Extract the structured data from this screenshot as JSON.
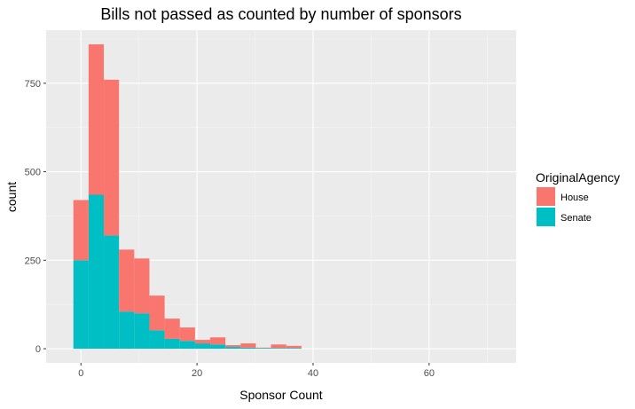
{
  "chart_data": {
    "type": "bar",
    "stacking": "stacked",
    "title": "Bills not passed as counted by number of sponsors",
    "xlabel": "Sponsor Count",
    "ylabel": "count",
    "xlim": [
      -6,
      75
    ],
    "ylim": [
      -40,
      900
    ],
    "x_ticks": [
      0,
      20,
      40,
      60
    ],
    "y_ticks": [
      0,
      250,
      500,
      750
    ],
    "grid": true,
    "legend": {
      "title": "OriginalAgency",
      "position": "right"
    },
    "bin_width": 2.62,
    "bin_starts": [
      -1.3,
      1.32,
      3.94,
      6.56,
      9.18,
      11.8,
      14.42,
      17.04,
      19.66,
      22.28,
      24.9,
      27.52,
      30.14,
      32.76,
      35.38
    ],
    "series": [
      {
        "name": "Senate",
        "color": "#00BFC4",
        "values": [
          250,
          435,
          320,
          105,
          100,
          52,
          28,
          22,
          15,
          12,
          5,
          3,
          2,
          2,
          2
        ]
      },
      {
        "name": "House",
        "color": "#F8766D",
        "values": [
          170,
          425,
          440,
          175,
          155,
          98,
          57,
          38,
          10,
          20,
          5,
          12,
          1,
          10,
          6
        ]
      }
    ]
  }
}
